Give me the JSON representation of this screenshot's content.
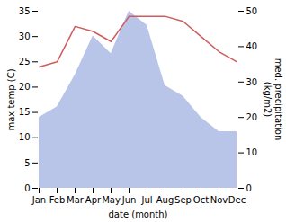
{
  "chart_data": {
    "type": "line",
    "categories": [
      "Jan",
      "Feb",
      "Mar",
      "Apr",
      "May",
      "Jun",
      "Jul",
      "Aug",
      "Sep",
      "Oct",
      "Nov",
      "Dec"
    ],
    "series": [
      {
        "type": "area",
        "axis": "y2",
        "color": "#b8c4e8",
        "values": [
          20,
          23,
          32,
          43,
          38,
          50,
          46,
          29,
          26,
          20,
          16,
          16
        ]
      },
      {
        "type": "line",
        "color": "#cd5c5c",
        "values": [
          24,
          25,
          32,
          31,
          29,
          34,
          34,
          34,
          33,
          30,
          27,
          25
        ]
      }
    ],
    "xlabel": "date (month)",
    "ylabel": "max temp (C)",
    "y2label": "med. precipitation\n(kg/m2)",
    "ylim": [
      0,
      35
    ],
    "yticks": [
      0,
      5,
      10,
      15,
      20,
      25,
      30,
      35
    ],
    "y2lim": [
      0,
      50
    ],
    "y2ticks": [
      0,
      10,
      20,
      30,
      40,
      50
    ],
    "grid": false
  }
}
